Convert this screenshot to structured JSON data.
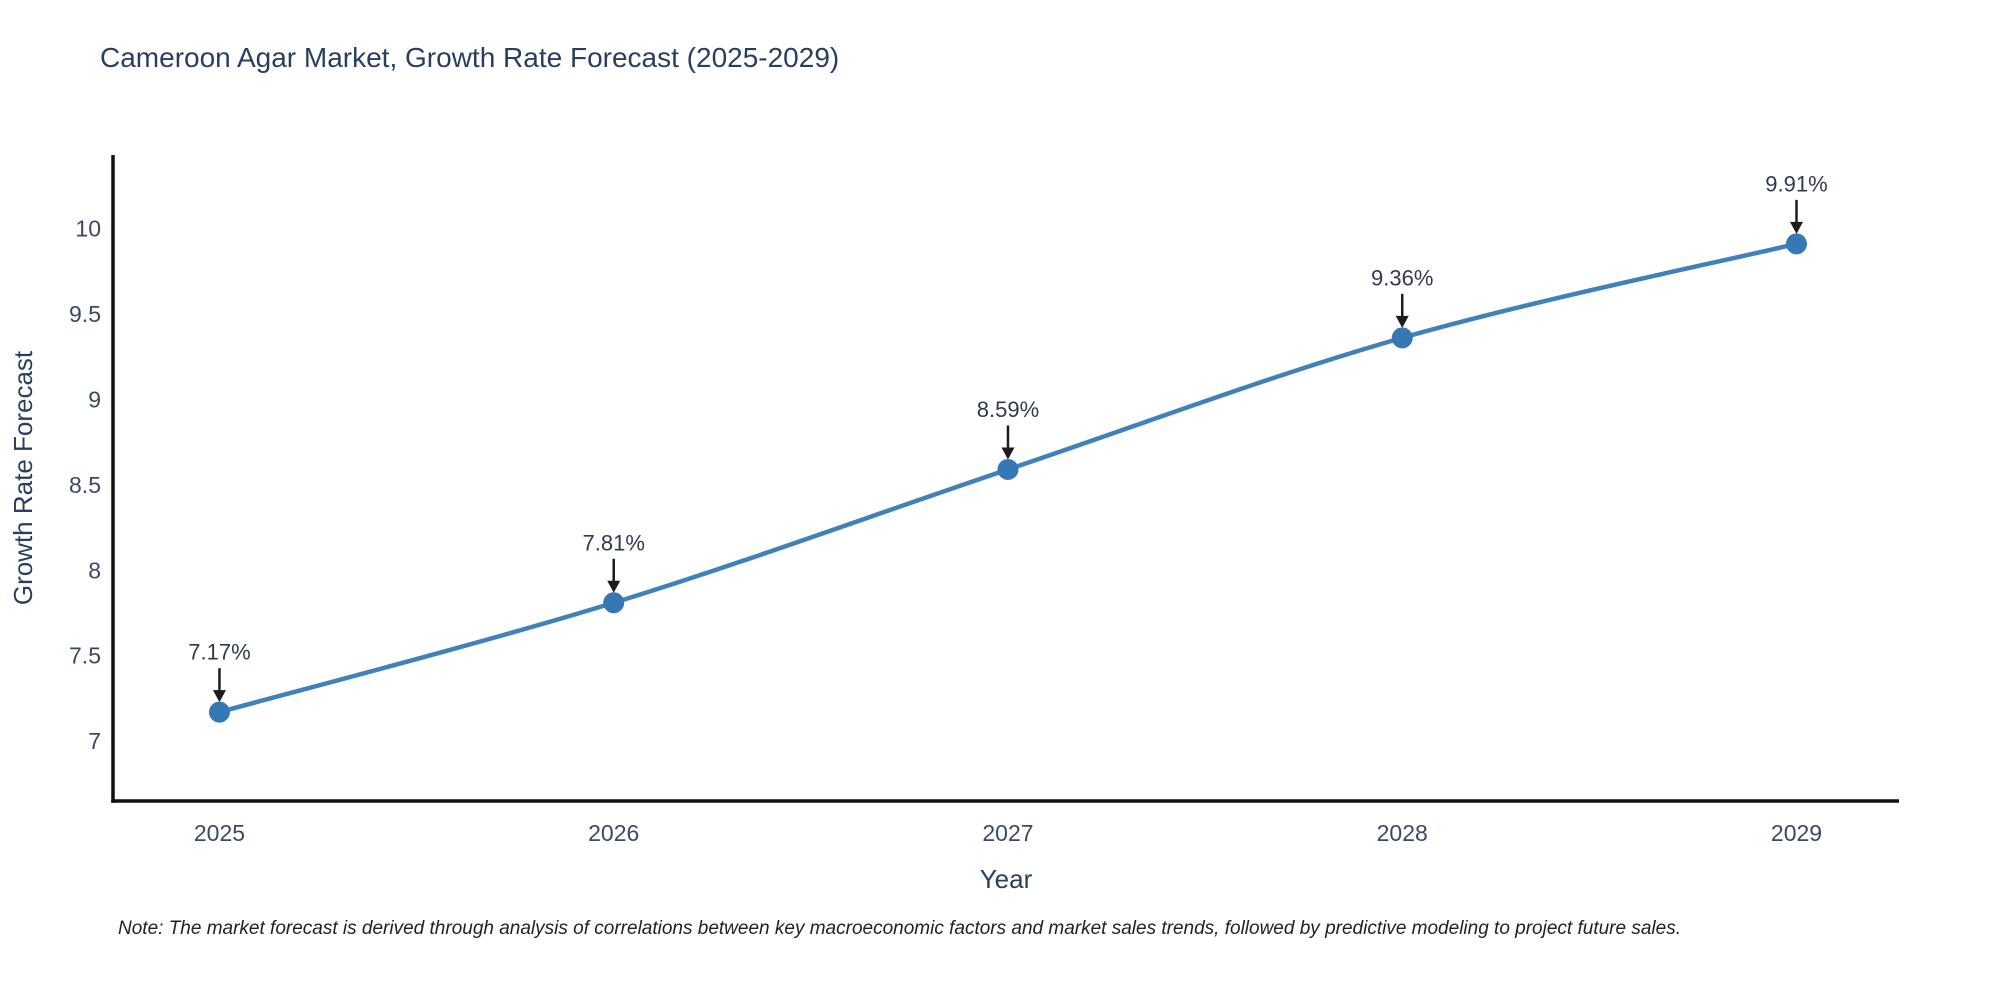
{
  "chart_data": {
    "type": "line",
    "title": "Cameroon Agar Market, Growth Rate Forecast (2025-2029)",
    "xlabel": "Year",
    "ylabel": "Growth Rate Forecast",
    "x": [
      2025,
      2026,
      2027,
      2028,
      2029
    ],
    "y": [
      7.17,
      7.81,
      8.59,
      9.36,
      9.91
    ],
    "point_labels": [
      "7.17%",
      "7.81%",
      "8.59%",
      "9.36%",
      "9.91%"
    ],
    "x_ticks": [
      2025,
      2026,
      2027,
      2028,
      2029
    ],
    "y_ticks": [
      7,
      7.5,
      8,
      8.5,
      9,
      9.5,
      10
    ],
    "x_range": [
      2024.73,
      2029.26
    ],
    "y_range": [
      6.65,
      10.43
    ],
    "grid": false,
    "legend": "none",
    "line_color": "#4081ba",
    "marker_color": "#3678b4",
    "axis_color": "#111111",
    "annotation_arrow_color": "#1c1c1c"
  },
  "note": "Note: The market forecast is derived through analysis of correlations between key macroeconomic factors and market sales trends, followed by predictive modeling to project future sales."
}
